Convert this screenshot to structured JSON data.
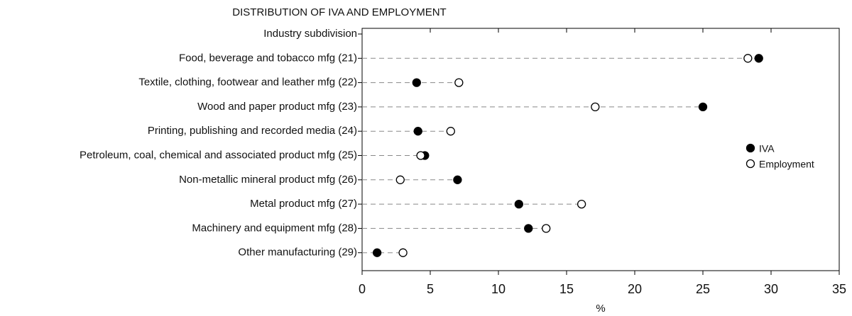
{
  "chart_data": {
    "type": "dot",
    "title": "DISTRIBUTION OF IVA AND EMPLOYMENT",
    "y_label": "Industry subdivision",
    "x_label": "%",
    "categories": [
      "Food, beverage and tobacco mfg (21)",
      "Textile, clothing, footwear and leather mfg (22)",
      "Wood and paper product mfg (23)",
      "Printing, publishing and recorded media (24)",
      "Petroleum, coal, chemical and associated product mfg (25)",
      "Non-metallic mineral product mfg (26)",
      "Metal product mfg (27)",
      "Machinery and equipment mfg (28)",
      "Other manufacturing (29)"
    ],
    "series": [
      {
        "name": "IVA",
        "color": "#000000",
        "values": [
          29.1,
          4.0,
          25.0,
          4.1,
          4.6,
          7.0,
          11.5,
          12.2,
          1.1
        ]
      },
      {
        "name": "Employment",
        "color": "#ffffff",
        "values": [
          28.3,
          7.1,
          17.1,
          6.5,
          4.3,
          2.8,
          16.1,
          13.5,
          3.0
        ]
      }
    ],
    "xlim": [
      0,
      35
    ],
    "xticks": [
      0,
      5,
      10,
      15,
      20,
      25,
      30,
      35
    ],
    "legend": "right"
  }
}
